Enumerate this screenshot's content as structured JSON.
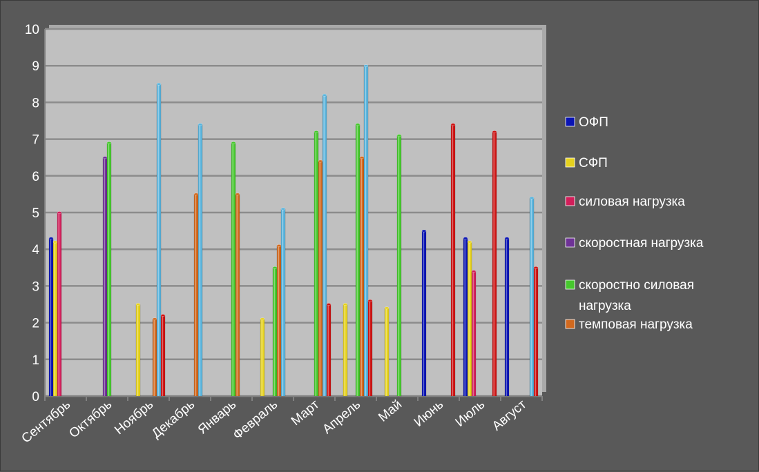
{
  "chart_data": {
    "type": "bar",
    "title": "",
    "xlabel": "",
    "ylabel": "",
    "ylim": [
      0,
      10
    ],
    "yticks": [
      0,
      1,
      2,
      3,
      4,
      5,
      6,
      7,
      8,
      9,
      10
    ],
    "grid": true,
    "legend_position": "right",
    "plot_background": "#c0c0c0",
    "categories": [
      "Сентябрь",
      "Октябрь",
      "Ноябрь",
      "Декабрь",
      "Январь",
      "Февраль",
      "Март",
      "Апрель",
      "Май",
      "Июнь",
      "Июль",
      "Август"
    ],
    "series": [
      {
        "name": "ОФП",
        "color": "#0a14b4",
        "values": [
          4.3,
          0,
          0,
          0,
          0,
          0,
          0,
          0,
          0,
          4.5,
          4.3,
          4.3
        ]
      },
      {
        "name": "СФП",
        "color": "#e6d21e",
        "values": [
          4.2,
          0,
          2.5,
          0,
          0,
          2.1,
          0,
          2.5,
          2.4,
          0,
          4.2,
          0
        ]
      },
      {
        "name": "силовая нагрузка",
        "color": "#d21e5a",
        "values": [
          5.0,
          0,
          0,
          0,
          0,
          0,
          0,
          0,
          0,
          0,
          3.4,
          0
        ]
      },
      {
        "name": "скоростная нагрузка",
        "color": "#6e3296",
        "values": [
          0,
          6.5,
          0,
          0,
          0,
          0,
          0,
          0,
          0,
          0,
          0,
          0
        ]
      },
      {
        "name": "скоростно силовая нагрузка",
        "color": "#46c82d",
        "values": [
          0,
          6.9,
          0,
          0,
          6.9,
          3.5,
          7.2,
          7.4,
          7.1,
          0,
          0,
          0
        ]
      },
      {
        "name": "темповая нагрузка",
        "color": "#d2691e",
        "values": [
          0,
          0,
          2.1,
          5.5,
          5.5,
          4.1,
          6.4,
          6.5,
          0,
          0,
          0,
          0
        ]
      },
      {
        "name": "",
        "color": "#5ab4dc",
        "values": [
          0,
          0,
          8.5,
          7.4,
          0,
          5.1,
          8.2,
          9.0,
          0,
          0,
          0,
          5.4
        ]
      },
      {
        "name": "",
        "color": "#cd1414",
        "values": [
          0,
          0,
          2.2,
          0,
          0,
          0,
          2.5,
          2.6,
          0,
          7.4,
          7.2,
          3.5
        ]
      }
    ],
    "legend_lines": [
      [
        "ОФП"
      ],
      [
        "СФП"
      ],
      [
        "силовая нагрузка"
      ],
      [
        "скоростная нагрузка"
      ],
      [
        "скоростно силовая",
        "нагрузка"
      ],
      [
        "темповая нагрузка"
      ]
    ]
  }
}
